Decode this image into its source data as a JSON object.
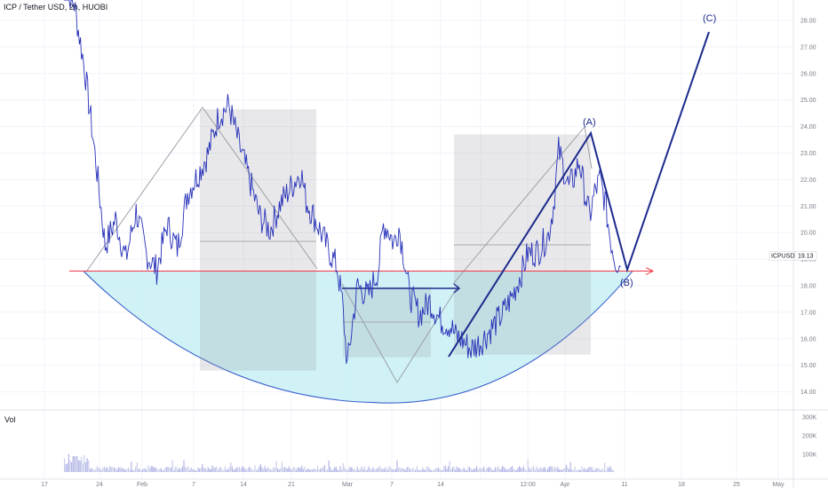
{
  "header": {
    "title": "ICP / Tether USD, 2h, HUOBI"
  },
  "volume_pane": {
    "label": "Vol",
    "ticks": [
      "300K",
      "200K",
      "100K"
    ]
  },
  "chart_data": {
    "type": "line",
    "symbol": "ICPUSDT",
    "last_price": "19.13",
    "y_ticks": [
      "28.00",
      "27.00",
      "26.00",
      "25.00",
      "24.00",
      "23.00",
      "22.00",
      "21.00",
      "20.00",
      "19.00",
      "18.00",
      "17.00",
      "16.00",
      "15.00",
      "14.00"
    ],
    "x_ticks": [
      "17",
      "24",
      "Feb",
      "7",
      "14",
      "21",
      "Mar",
      "7",
      "14",
      "12:00",
      "Apr",
      "11",
      "18",
      "25",
      "May"
    ],
    "ylim": [
      13.6,
      28.4
    ],
    "support_level": 18.55,
    "wave_labels": [
      "(A)",
      "(B)",
      "(C)"
    ],
    "price_series": [
      [
        0,
        29.5
      ],
      [
        2,
        28.6
      ],
      [
        4,
        26.2
      ],
      [
        6,
        23.0
      ],
      [
        8,
        19.5
      ],
      [
        10,
        20.5
      ],
      [
        12,
        19.0
      ],
      [
        14,
        20.8
      ],
      [
        16,
        19.2
      ],
      [
        18,
        18.6
      ],
      [
        20,
        20.3
      ],
      [
        22,
        19.4
      ],
      [
        24,
        21.5
      ],
      [
        26,
        22.2
      ],
      [
        28,
        23.0
      ],
      [
        30,
        24.4
      ],
      [
        32,
        24.8
      ],
      [
        34,
        23.3
      ],
      [
        36,
        22.0
      ],
      [
        38,
        20.6
      ],
      [
        40,
        20.1
      ],
      [
        42,
        21.1
      ],
      [
        44,
        21.7
      ],
      [
        46,
        22.3
      ],
      [
        47,
        21.2
      ],
      [
        49,
        20.4
      ],
      [
        51,
        19.5
      ],
      [
        53,
        18.7
      ],
      [
        54,
        17.4
      ],
      [
        55,
        15.0
      ],
      [
        56,
        16.6
      ],
      [
        57,
        18.0
      ],
      [
        59,
        17.6
      ],
      [
        61,
        18.6
      ],
      [
        62,
        20.3
      ],
      [
        63,
        20.1
      ],
      [
        64,
        19.6
      ],
      [
        65,
        20.2
      ],
      [
        66,
        19.1
      ],
      [
        67,
        17.7
      ],
      [
        69,
        16.9
      ],
      [
        71,
        17.4
      ],
      [
        73,
        16.7
      ],
      [
        75,
        16.5
      ],
      [
        76,
        16.1
      ],
      [
        77,
        16.0
      ],
      [
        79,
        15.6
      ],
      [
        81,
        15.9
      ],
      [
        83,
        16.4
      ],
      [
        85,
        16.9
      ],
      [
        87,
        17.6
      ],
      [
        89,
        18.6
      ],
      [
        90,
        19.2
      ],
      [
        92,
        19.3
      ],
      [
        94,
        19.9
      ],
      [
        95,
        21.0
      ],
      [
        96,
        23.1
      ],
      [
        97,
        22.4
      ],
      [
        98,
        21.7
      ],
      [
        99,
        22.1
      ],
      [
        100,
        22.7
      ],
      [
        101,
        21.6
      ],
      [
        102,
        20.6
      ],
      [
        103,
        21.5
      ],
      [
        104,
        22.0
      ],
      [
        105,
        21.2
      ],
      [
        106,
        19.8
      ],
      [
        107,
        19.0
      ],
      [
        108,
        18.7
      ]
    ],
    "volume_max": 300000,
    "boxes": [
      {
        "t0": 30,
        "t1": 52,
        "p0": 14.8,
        "p1": 24.65
      },
      {
        "t0": 59,
        "t1": 76,
        "p0": 15.3,
        "p1": 17.95
      },
      {
        "t0": 87,
        "t1": 111,
        "p0": 15.4,
        "p1": 23.7
      }
    ],
    "cup_low": 13.6
  }
}
